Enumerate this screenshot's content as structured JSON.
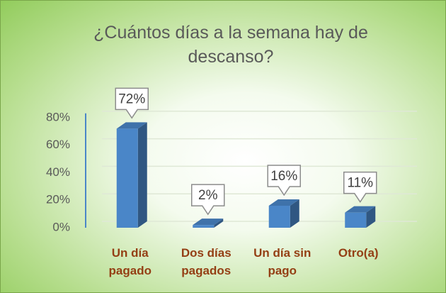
{
  "chart_data": {
    "type": "bar3d",
    "title": "¿Cuántos días a la semana hay de descanso?",
    "categories": [
      "Un día pagado",
      "Dos días pagados",
      "Un día sin pago",
      "Otro(a)"
    ],
    "values": [
      72,
      2,
      16,
      11
    ],
    "value_labels": [
      "72%",
      "2%",
      "16%",
      "11%"
    ],
    "color": "#4a86c8",
    "ylim": [
      0,
      100
    ],
    "yticks": [
      {
        "value": 0,
        "label": "0%"
      },
      {
        "value": 20,
        "label": "20%"
      },
      {
        "value": 40,
        "label": "40%"
      },
      {
        "value": 60,
        "label": "60%"
      },
      {
        "value": 80,
        "label": "80%"
      }
    ],
    "grid": true
  }
}
